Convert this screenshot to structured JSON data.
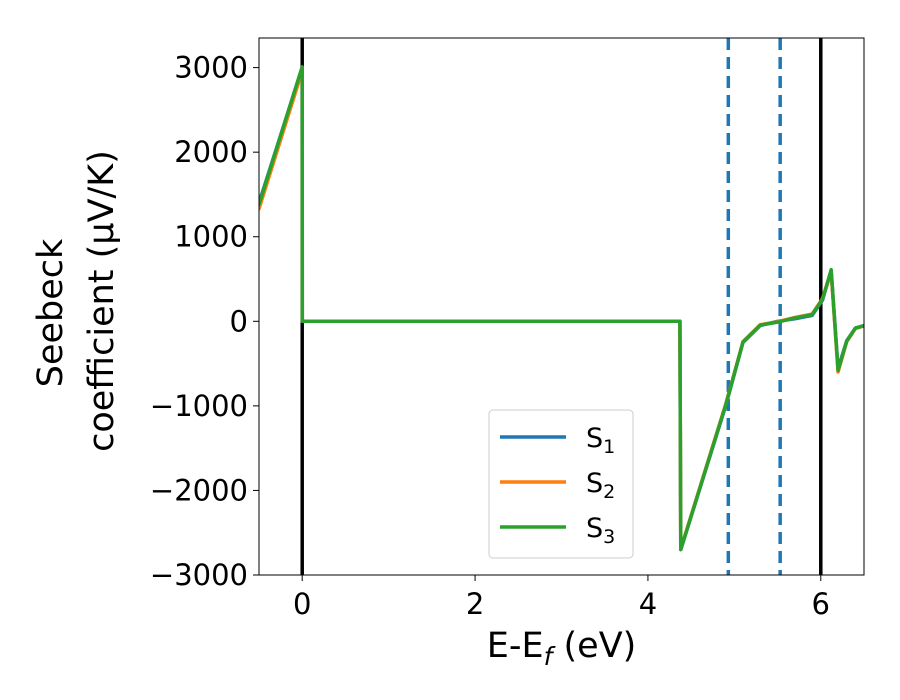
{
  "chart_data": {
    "type": "line",
    "xlabel": {
      "main": "E-E",
      "sub": "f",
      "unit": " (eV)"
    },
    "ylabel": {
      "line1": "Seebeck",
      "line2": "coefficient  (μV/K)"
    },
    "xlim": [
      -0.5,
      6.5
    ],
    "ylim": [
      -3000,
      3350
    ],
    "xticks": [
      0,
      2,
      4,
      6
    ],
    "yticks": [
      -3000,
      -2000,
      -1000,
      0,
      1000,
      2000,
      3000
    ],
    "ytick_labels": [
      "−3000",
      "−2000",
      "−1000",
      "0",
      "1000",
      "2000",
      "3000"
    ],
    "legend_position": "lower-center",
    "vlines": [
      {
        "x": 0,
        "style": "solid",
        "color": "#000000"
      },
      {
        "x": 6,
        "style": "solid",
        "color": "#000000"
      },
      {
        "x": 4.93,
        "style": "dashed",
        "color": "#1f77b4"
      },
      {
        "x": 5.53,
        "style": "dashed",
        "color": "#1f77b4"
      }
    ],
    "series": [
      {
        "name": "S",
        "sub": "1",
        "color": "#1f77b4",
        "points": [
          [
            -0.5,
            1400
          ],
          [
            0,
            3000
          ],
          [
            0.001,
            0
          ],
          [
            4.37,
            0
          ],
          [
            4.38,
            -2700
          ],
          [
            4.9,
            -1000
          ],
          [
            5.1,
            -250
          ],
          [
            5.3,
            -50
          ],
          [
            5.5,
            0
          ],
          [
            5.7,
            30
          ],
          [
            5.9,
            70
          ],
          [
            6.02,
            250
          ],
          [
            6.12,
            600
          ],
          [
            6.2,
            -560
          ],
          [
            6.3,
            -230
          ],
          [
            6.4,
            -80
          ],
          [
            6.5,
            -50
          ]
        ]
      },
      {
        "name": "S",
        "sub": "2",
        "color": "#ff7f0e",
        "points": [
          [
            -0.5,
            1330
          ],
          [
            0,
            2960
          ],
          [
            0.001,
            0
          ],
          [
            4.37,
            0
          ],
          [
            4.38,
            -2690
          ],
          [
            4.9,
            -980
          ],
          [
            5.1,
            -240
          ],
          [
            5.3,
            -40
          ],
          [
            5.5,
            -5
          ],
          [
            5.7,
            45
          ],
          [
            5.9,
            85
          ],
          [
            6.02,
            270
          ],
          [
            6.12,
            580
          ],
          [
            6.2,
            -600
          ],
          [
            6.3,
            -240
          ],
          [
            6.4,
            -85
          ],
          [
            6.5,
            -55
          ]
        ]
      },
      {
        "name": "S",
        "sub": "3",
        "color": "#2ca02c",
        "points": [
          [
            -0.5,
            1380
          ],
          [
            0,
            3010
          ],
          [
            0.001,
            0
          ],
          [
            4.37,
            0
          ],
          [
            4.38,
            -2700
          ],
          [
            4.9,
            -990
          ],
          [
            5.1,
            -245
          ],
          [
            5.3,
            -45
          ],
          [
            5.5,
            -10
          ],
          [
            5.7,
            40
          ],
          [
            5.9,
            80
          ],
          [
            6.02,
            260
          ],
          [
            6.12,
            610
          ],
          [
            6.2,
            -580
          ],
          [
            6.3,
            -235
          ],
          [
            6.4,
            -82
          ],
          [
            6.5,
            -52
          ]
        ]
      }
    ]
  }
}
